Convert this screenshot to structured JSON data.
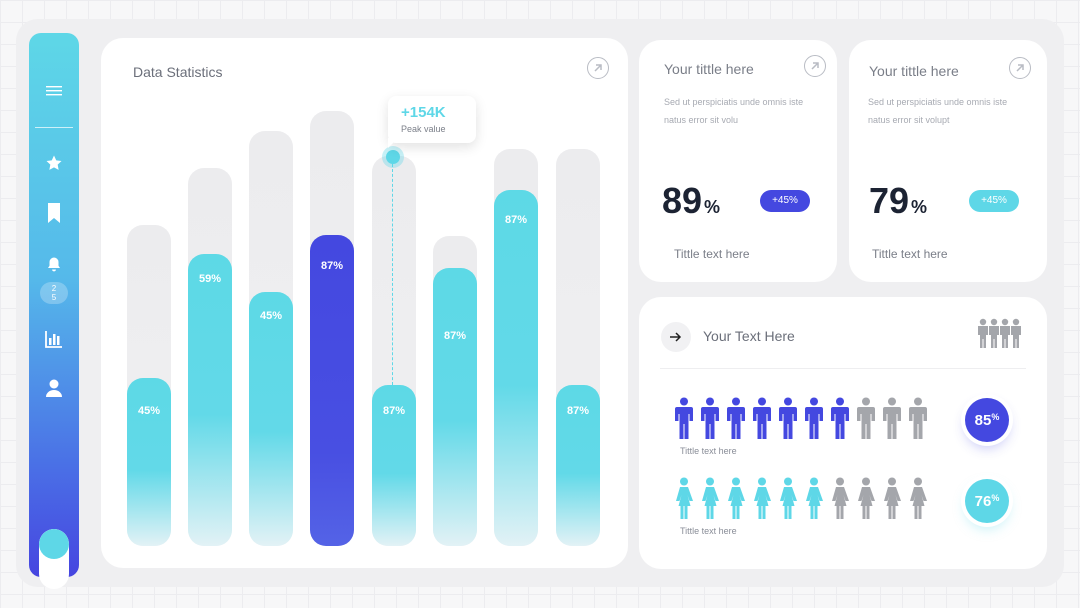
{
  "sidebar": {
    "menu_icon": "hamburger-icon",
    "items": [
      {
        "icon": "star-icon"
      },
      {
        "icon": "bookmark-icon"
      },
      {
        "icon": "bell-icon",
        "badge": "2\n5"
      },
      {
        "icon": "bar-chart-icon"
      },
      {
        "icon": "user-icon"
      }
    ]
  },
  "stats": {
    "title": "Data Statistics",
    "tooltip": {
      "value": "+154K",
      "label": "Peak value"
    }
  },
  "chart_data": {
    "type": "bar",
    "title": "Data Statistics",
    "values": [
      45,
      59,
      45,
      87,
      87,
      87,
      87,
      87
    ],
    "labels": [
      "45%",
      "59%",
      "45%",
      "87%",
      "87%",
      "87%",
      "87%",
      "87%"
    ],
    "highlight_index": 3,
    "annotation": {
      "text": "+154K",
      "subtext": "Peak value",
      "bar_index": 4
    },
    "colors": {
      "primary": "#5ed7e7",
      "highlight": "#4448e0",
      "track": "#ececee"
    }
  },
  "cards": [
    {
      "title": "Your tittle here",
      "desc": "Sed ut perspiciatis unde omnis iste natus error sit volu",
      "value": "89",
      "unit": "%",
      "badge": "+45%",
      "badge_color": "#4448e0",
      "footer": "Tittle text here"
    },
    {
      "title": "Your tittle here",
      "desc": "Sed ut perspiciatis unde omnis iste natus error sit volupt",
      "value": "79",
      "unit": "%",
      "badge": "+45%",
      "badge_color": "#5ed7e7",
      "footer": "Tittle text here"
    }
  ],
  "people": {
    "header": "Your Text Here",
    "rows": [
      {
        "caption": "Tittle text here",
        "filled": 7,
        "total": 10,
        "gender": "male",
        "color": "#4448e0",
        "percent": "85",
        "unit": "%"
      },
      {
        "caption": "Tittle text here",
        "filled": 6,
        "total": 10,
        "gender": "female",
        "color": "#5ed7e7",
        "percent": "76",
        "unit": "%"
      }
    ],
    "inactive_color": "#a4a6ab"
  }
}
